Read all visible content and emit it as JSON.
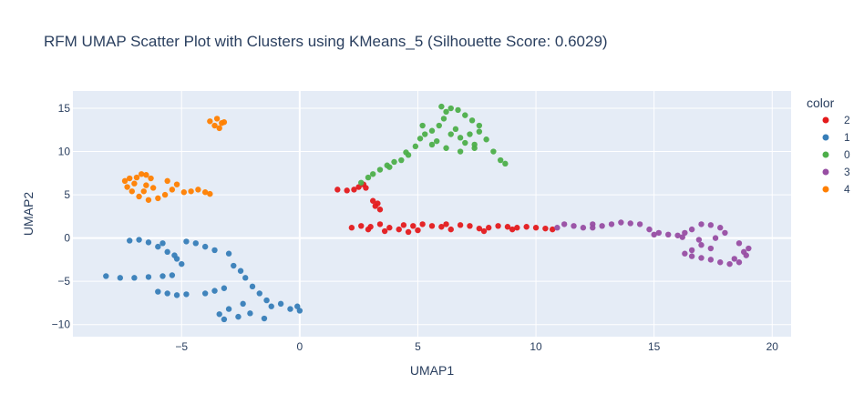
{
  "chart_data": {
    "type": "scatter",
    "title": "RFM UMAP Scatter Plot with Clusters using KMeans_5 (Silhouette Score: 0.6029)",
    "xlabel": "UMAP1",
    "ylabel": "UMAP2",
    "xlim": [
      -9.6,
      20.8
    ],
    "ylim": [
      -11.4,
      17.0
    ],
    "x_ticks": [
      -5,
      0,
      5,
      10,
      15,
      20
    ],
    "x_tick_labels": [
      "−5",
      "0",
      "5",
      "10",
      "15",
      "20"
    ],
    "y_ticks": [
      -10,
      -5,
      0,
      5,
      10,
      15
    ],
    "y_tick_labels": [
      "−10",
      "−5",
      "0",
      "5",
      "10",
      "15"
    ],
    "grid": true,
    "legend_title": "color",
    "legend_position": "right",
    "plot_background": "#e5ecf6",
    "series": [
      {
        "name": "2",
        "color": "#e41a1c",
        "points": [
          [
            1.6,
            5.6
          ],
          [
            2.0,
            5.5
          ],
          [
            2.3,
            5.6
          ],
          [
            2.5,
            5.9
          ],
          [
            2.7,
            6.2
          ],
          [
            2.8,
            5.8
          ],
          [
            3.1,
            4.3
          ],
          [
            3.2,
            3.7
          ],
          [
            3.4,
            3.3
          ],
          [
            3.3,
            4.0
          ],
          [
            2.2,
            1.2
          ],
          [
            2.6,
            1.4
          ],
          [
            3.0,
            1.3
          ],
          [
            3.4,
            1.6
          ],
          [
            3.8,
            1.2
          ],
          [
            4.2,
            1.0
          ],
          [
            4.6,
            0.7
          ],
          [
            4.8,
            1.4
          ],
          [
            5.2,
            1.6
          ],
          [
            5.6,
            1.4
          ],
          [
            6.0,
            1.3
          ],
          [
            6.4,
            1.0
          ],
          [
            6.8,
            1.5
          ],
          [
            7.2,
            1.4
          ],
          [
            7.6,
            1.1
          ],
          [
            8.0,
            1.2
          ],
          [
            8.4,
            1.4
          ],
          [
            8.8,
            1.3
          ],
          [
            9.2,
            1.2
          ],
          [
            9.6,
            1.3
          ],
          [
            10.0,
            1.2
          ],
          [
            10.4,
            1.1
          ],
          [
            10.7,
            1.0
          ],
          [
            3.6,
            0.8
          ],
          [
            5.0,
            0.9
          ],
          [
            6.2,
            1.6
          ],
          [
            7.8,
            0.8
          ],
          [
            9.0,
            1.0
          ],
          [
            2.9,
            1.0
          ],
          [
            4.4,
            1.5
          ]
        ]
      },
      {
        "name": "1",
        "color": "#377eb8",
        "points": [
          [
            -8.2,
            -4.4
          ],
          [
            -7.6,
            -4.6
          ],
          [
            -7.0,
            -4.6
          ],
          [
            -6.4,
            -4.5
          ],
          [
            -5.8,
            -4.4
          ],
          [
            -5.4,
            -4.3
          ],
          [
            -7.2,
            -0.3
          ],
          [
            -6.8,
            -0.2
          ],
          [
            -6.4,
            -0.5
          ],
          [
            -6.0,
            -1.0
          ],
          [
            -5.6,
            -1.6
          ],
          [
            -5.2,
            -2.4
          ],
          [
            -5.0,
            -3.0
          ],
          [
            -5.3,
            -2.0
          ],
          [
            -5.8,
            -0.6
          ],
          [
            -4.8,
            -0.4
          ],
          [
            -4.4,
            -0.6
          ],
          [
            -4.0,
            -1.0
          ],
          [
            -3.6,
            -1.4
          ],
          [
            -3.0,
            -1.8
          ],
          [
            -6.0,
            -6.2
          ],
          [
            -5.6,
            -6.4
          ],
          [
            -5.2,
            -6.6
          ],
          [
            -4.8,
            -6.5
          ],
          [
            -4.0,
            -6.4
          ],
          [
            -3.6,
            -6.1
          ],
          [
            -3.2,
            -5.8
          ],
          [
            -2.8,
            -3.2
          ],
          [
            -2.5,
            -3.8
          ],
          [
            -2.3,
            -4.6
          ],
          [
            -2.0,
            -5.6
          ],
          [
            -1.7,
            -6.4
          ],
          [
            -1.4,
            -7.2
          ],
          [
            -2.4,
            -7.6
          ],
          [
            -3.0,
            -8.2
          ],
          [
            -3.4,
            -8.8
          ],
          [
            -3.2,
            -9.4
          ],
          [
            -2.6,
            -9.1
          ],
          [
            -2.1,
            -8.7
          ],
          [
            -1.5,
            -9.3
          ],
          [
            -0.8,
            -7.6
          ],
          [
            -0.4,
            -8.2
          ],
          [
            0.0,
            -8.4
          ],
          [
            -0.1,
            -7.9
          ],
          [
            -1.2,
            -7.9
          ]
        ]
      },
      {
        "name": "0",
        "color": "#4daf4a",
        "points": [
          [
            2.6,
            6.4
          ],
          [
            2.9,
            7.0
          ],
          [
            3.1,
            7.4
          ],
          [
            3.4,
            7.9
          ],
          [
            3.7,
            8.4
          ],
          [
            4.0,
            8.8
          ],
          [
            4.3,
            9.0
          ],
          [
            4.6,
            9.6
          ],
          [
            4.9,
            10.6
          ],
          [
            5.1,
            11.5
          ],
          [
            5.3,
            12.0
          ],
          [
            5.6,
            12.4
          ],
          [
            5.9,
            13.0
          ],
          [
            6.1,
            13.8
          ],
          [
            6.2,
            14.6
          ],
          [
            6.0,
            15.2
          ],
          [
            6.4,
            15.0
          ],
          [
            6.7,
            14.8
          ],
          [
            7.0,
            14.2
          ],
          [
            7.3,
            13.6
          ],
          [
            6.4,
            12.0
          ],
          [
            6.8,
            11.6
          ],
          [
            7.2,
            12.0
          ],
          [
            7.6,
            12.3
          ],
          [
            7.9,
            11.4
          ],
          [
            8.2,
            10.0
          ],
          [
            8.5,
            9.0
          ],
          [
            8.7,
            8.6
          ],
          [
            5.6,
            10.8
          ],
          [
            6.2,
            10.4
          ],
          [
            6.8,
            10.0
          ],
          [
            7.4,
            10.4
          ],
          [
            7.0,
            11.0
          ],
          [
            4.5,
            9.9
          ],
          [
            3.8,
            8.2
          ],
          [
            5.8,
            11.2
          ],
          [
            6.6,
            12.6
          ],
          [
            7.4,
            10.8
          ],
          [
            5.2,
            13.0
          ],
          [
            7.6,
            13.0
          ]
        ]
      },
      {
        "name": "3",
        "color": "#984ea3",
        "points": [
          [
            10.9,
            1.2
          ],
          [
            11.2,
            1.6
          ],
          [
            11.6,
            1.4
          ],
          [
            12.0,
            1.2
          ],
          [
            12.4,
            1.6
          ],
          [
            12.8,
            1.4
          ],
          [
            13.2,
            1.6
          ],
          [
            13.6,
            1.8
          ],
          [
            14.0,
            1.7
          ],
          [
            14.4,
            1.6
          ],
          [
            14.8,
            1.0
          ],
          [
            15.2,
            0.6
          ],
          [
            15.6,
            0.4
          ],
          [
            16.0,
            0.3
          ],
          [
            16.3,
            0.6
          ],
          [
            16.6,
            1.0
          ],
          [
            17.0,
            1.6
          ],
          [
            17.4,
            1.5
          ],
          [
            17.8,
            1.2
          ],
          [
            18.0,
            0.6
          ],
          [
            17.6,
            0.0
          ],
          [
            17.0,
            -0.8
          ],
          [
            16.6,
            -1.4
          ],
          [
            16.3,
            -1.8
          ],
          [
            16.6,
            -2.1
          ],
          [
            17.0,
            -2.3
          ],
          [
            17.4,
            -2.5
          ],
          [
            17.8,
            -2.8
          ],
          [
            18.2,
            -3.0
          ],
          [
            18.6,
            -2.8
          ],
          [
            18.9,
            -2.0
          ],
          [
            19.0,
            -1.2
          ],
          [
            18.6,
            -0.6
          ],
          [
            18.4,
            -2.4
          ],
          [
            16.9,
            -0.2
          ],
          [
            17.4,
            -1.2
          ],
          [
            12.4,
            1.2
          ],
          [
            15.0,
            0.4
          ],
          [
            16.2,
            0.1
          ],
          [
            18.8,
            -1.6
          ]
        ]
      },
      {
        "name": "4",
        "color": "#ff7f00",
        "points": [
          [
            -3.8,
            13.5
          ],
          [
            -3.6,
            13.0
          ],
          [
            -3.4,
            12.7
          ],
          [
            -3.3,
            13.3
          ],
          [
            -3.5,
            13.8
          ],
          [
            -3.2,
            13.4
          ],
          [
            -7.4,
            6.6
          ],
          [
            -7.3,
            5.9
          ],
          [
            -7.1,
            5.4
          ],
          [
            -7.0,
            6.3
          ],
          [
            -6.9,
            7.0
          ],
          [
            -6.7,
            7.4
          ],
          [
            -6.5,
            7.3
          ],
          [
            -6.3,
            6.9
          ],
          [
            -6.5,
            6.1
          ],
          [
            -6.6,
            5.4
          ],
          [
            -6.8,
            4.8
          ],
          [
            -6.4,
            4.4
          ],
          [
            -6.0,
            4.6
          ],
          [
            -5.7,
            5.0
          ],
          [
            -5.4,
            5.6
          ],
          [
            -5.2,
            6.2
          ],
          [
            -5.6,
            6.6
          ],
          [
            -4.9,
            5.3
          ],
          [
            -4.6,
            5.4
          ],
          [
            -4.3,
            5.6
          ],
          [
            -4.0,
            5.3
          ],
          [
            -3.8,
            5.1
          ],
          [
            -6.2,
            5.8
          ],
          [
            -7.2,
            6.9
          ]
        ]
      }
    ]
  }
}
